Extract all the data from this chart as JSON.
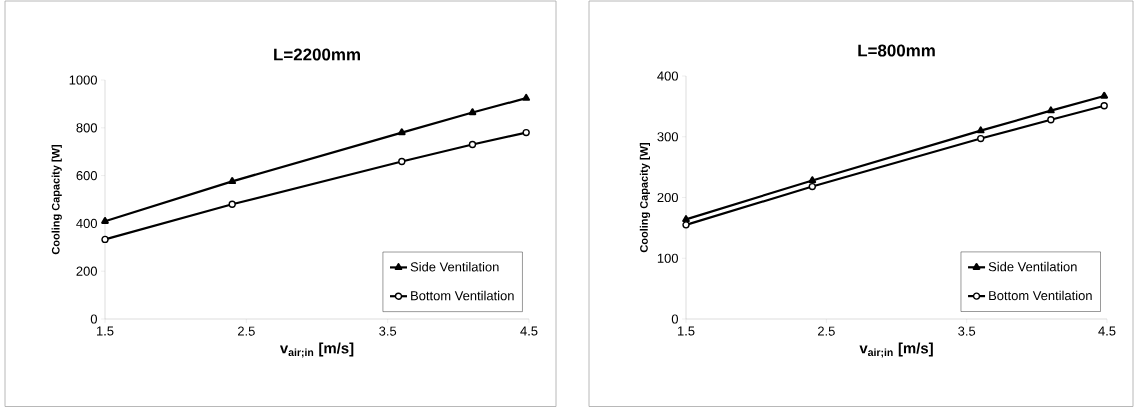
{
  "chart_data": [
    {
      "type": "line",
      "title": "L=2200mm",
      "xlabel": "v$_{air;in}$ [m/s]",
      "ylabel": "Cooling Capacity [W]",
      "xlim": [
        1.5,
        4.5
      ],
      "xticks": [
        1.5,
        2.5,
        3.5,
        4.5
      ],
      "ylim": [
        0,
        1000
      ],
      "yticks": [
        0,
        200,
        400,
        600,
        800,
        1000
      ],
      "grid": false,
      "legend": "bottom right",
      "line_style": "solid",
      "series": [
        {
          "name": "Side Ventilation",
          "color": "#000000",
          "marker": "triangle",
          "x": [
            1.5,
            2.4,
            3.6,
            4.1,
            4.48
          ],
          "values": [
            409,
            576,
            780,
            864,
            924
          ]
        },
        {
          "name": "Bottom Ventilation",
          "color": "#000000",
          "marker": "circle",
          "x": [
            1.5,
            2.4,
            3.6,
            4.1,
            4.48
          ],
          "values": [
            333,
            480,
            659,
            730,
            780
          ]
        }
      ]
    },
    {
      "type": "line",
      "title": "L=800mm",
      "xlabel": "v$_{air;in}$ [m/s]",
      "ylabel": "Cooling Capacity [W]",
      "xlim": [
        1.5,
        4.5
      ],
      "xticks": [
        1.5,
        2.5,
        3.5,
        4.5
      ],
      "ylim": [
        0,
        400
      ],
      "yticks": [
        0,
        100,
        200,
        300,
        400
      ],
      "grid": false,
      "legend": "bottom right",
      "line_style": "solid",
      "series": [
        {
          "name": "Side Ventilation",
          "color": "#000000",
          "marker": "triangle",
          "x": [
            1.5,
            2.4,
            3.6,
            4.1,
            4.48
          ],
          "values": [
            164,
            228,
            310,
            343,
            367
          ]
        },
        {
          "name": "Bottom Ventilation",
          "color": "#000000",
          "marker": "circle",
          "x": [
            1.5,
            2.4,
            3.6,
            4.1,
            4.48
          ],
          "values": [
            155,
            218,
            297,
            328,
            351
          ]
        }
      ]
    }
  ]
}
